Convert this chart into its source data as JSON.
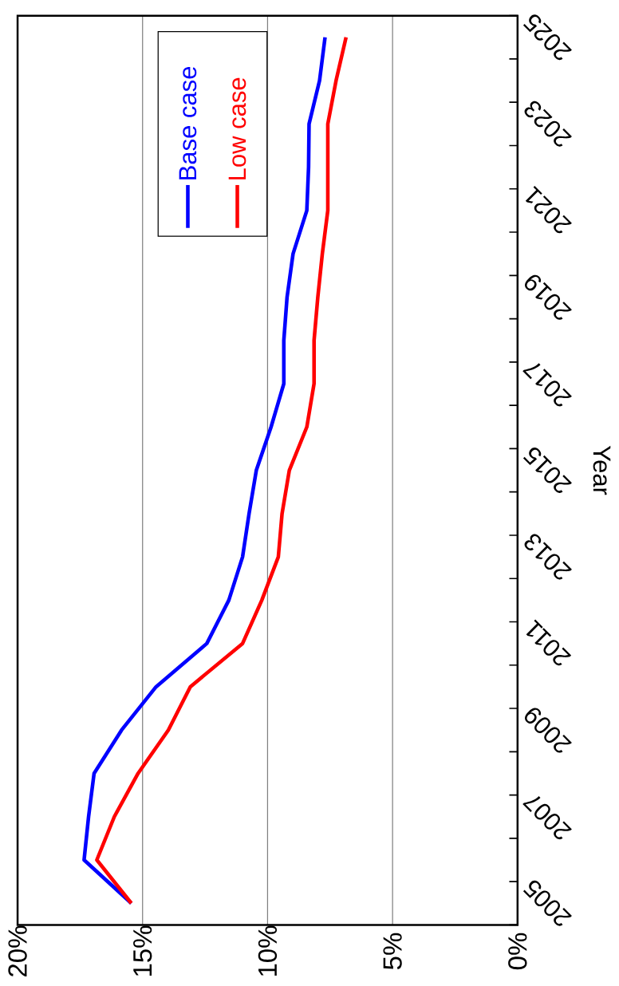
{
  "chart_data": {
    "type": "line",
    "orientation": "horizontal",
    "ylabel": "Year",
    "categories": [
      "2025",
      null,
      "2023",
      null,
      "2021",
      null,
      "2019",
      null,
      "2017",
      null,
      "2015",
      null,
      "2013",
      null,
      "2011",
      null,
      "2009",
      null,
      "2007",
      null,
      "2005"
    ],
    "series": [
      {
        "name": "Base case",
        "color": "#0000ff",
        "values": [
          7.7,
          7.92,
          8.34,
          8.36,
          8.43,
          8.98,
          9.22,
          9.35,
          9.35,
          9.86,
          10.45,
          10.74,
          11.0,
          11.55,
          12.43,
          14.46,
          15.84,
          16.94,
          17.16,
          17.34,
          15.45
        ]
      },
      {
        "name": "Low case",
        "color": "#ff0000",
        "values": [
          6.86,
          7.26,
          7.59,
          7.59,
          7.59,
          7.81,
          7.99,
          8.14,
          8.14,
          8.43,
          9.13,
          9.42,
          9.57,
          10.23,
          11.0,
          13.09,
          13.97,
          15.18,
          16.13,
          16.83,
          15.45
        ]
      }
    ],
    "xlim": [
      20,
      0
    ],
    "xticks": [
      {
        "value": 20,
        "label": "20%"
      },
      {
        "value": 15,
        "label": "15%"
      },
      {
        "value": 10,
        "label": "10%"
      },
      {
        "value": 5,
        "label": "5%"
      },
      {
        "value": 0,
        "label": "0%"
      }
    ],
    "grid": "x",
    "legend": "top left"
  }
}
